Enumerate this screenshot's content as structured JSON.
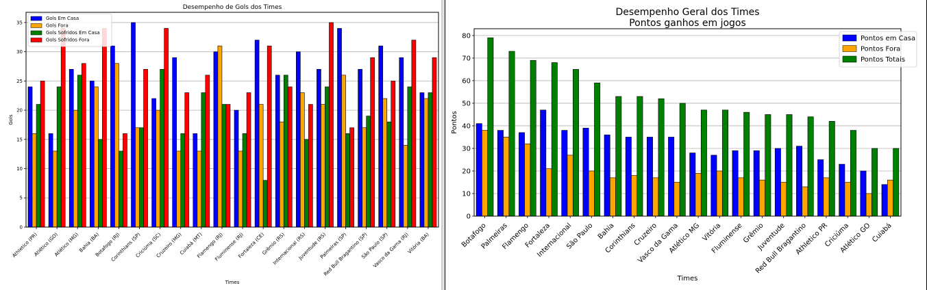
{
  "chart_data": [
    {
      "type": "bar",
      "title": "Desempenho de Gols dos Times",
      "xlabel": "Times",
      "ylabel": "Gols",
      "ylim": [
        0,
        36.75
      ],
      "yticks": [
        0,
        5,
        10,
        15,
        20,
        25,
        30,
        35
      ],
      "grid": "y",
      "legend": "top-left",
      "categories": [
        "Athletico (PR)",
        "Atlético (GO)",
        "Atlético (MG)",
        "Bahia (BA)",
        "Botafogo (RJ)",
        "Corinthians (SP)",
        "Criciúma (SC)",
        "Cruzeiro (MG)",
        "Cuiabá (MT)",
        "Flamengo (RJ)",
        "Fluminense (RJ)",
        "Fortaleza (CE)",
        "Grêmio (RS)",
        "Internacional (RS)",
        "Juventude (RS)",
        "Palmeiras (SP)",
        "Red Bull Bragantino (SP)",
        "São Paulo (SP)",
        "Vasco da Gama (RJ)",
        "Vitória (BA)"
      ],
      "series": [
        {
          "name": "Gols Em Casa",
          "color": "#0000ff",
          "values": [
            24,
            16,
            27,
            25,
            31,
            35,
            22,
            29,
            16,
            30,
            20,
            32,
            26,
            30,
            27,
            34,
            27,
            31,
            29,
            23
          ]
        },
        {
          "name": "Gols Fora",
          "color": "#ffa500",
          "values": [
            16,
            13,
            20,
            24,
            28,
            17,
            20,
            13,
            13,
            31,
            13,
            21,
            18,
            23,
            21,
            26,
            17,
            22,
            14,
            22
          ]
        },
        {
          "name": "Gols Sofridos Em Casa",
          "color": "#008000",
          "values": [
            21,
            24,
            26,
            15,
            13,
            17,
            27,
            16,
            23,
            21,
            16,
            8,
            26,
            15,
            24,
            16,
            19,
            18,
            24,
            23
          ]
        },
        {
          "name": "Gols Sofridos Fora",
          "color": "#ff0000",
          "values": [
            25,
            34,
            28,
            34,
            16,
            27,
            34,
            23,
            26,
            21,
            23,
            31,
            24,
            21,
            35,
            17,
            29,
            25,
            32,
            29
          ]
        }
      ]
    },
    {
      "type": "bar",
      "title": "Desempenho Geral dos Times",
      "subtitle": "Pontos ganhos em jogos",
      "xlabel": "Times",
      "ylabel": "Pontos",
      "ylim": [
        0,
        83
      ],
      "yticks": [
        0,
        10,
        20,
        30,
        40,
        50,
        60,
        70,
        80
      ],
      "grid": "y",
      "legend": "top-right",
      "categories": [
        "Botafogo",
        "Palmeiras",
        "Flamengo",
        "Fortaleza",
        "Internacional",
        "São Paulo",
        "Bahia",
        "Corinthians",
        "Cruzeiro",
        "Vasco da Gama",
        "Atlético MG",
        "Vitória",
        "Fluminense",
        "Grêmio",
        "Juventude",
        "Red Bull Bragantino",
        "Athletico PR",
        "Criciúma",
        "Atlético GO",
        "Cuiabá"
      ],
      "series": [
        {
          "name": "Pontos em Casa",
          "color": "#0000ff",
          "values": [
            41,
            38,
            37,
            47,
            38,
            39,
            36,
            35,
            35,
            35,
            28,
            27,
            29,
            29,
            30,
            31,
            25,
            23,
            20,
            14
          ]
        },
        {
          "name": "Pontos Fora",
          "color": "#ffa500",
          "values": [
            38,
            35,
            32,
            21,
            27,
            20,
            17,
            18,
            17,
            15,
            19,
            20,
            17,
            16,
            15,
            13,
            17,
            15,
            10,
            16
          ]
        },
        {
          "name": "Pontos Totais",
          "color": "#008000",
          "values": [
            79,
            73,
            69,
            68,
            65,
            59,
            53,
            53,
            52,
            50,
            47,
            47,
            46,
            45,
            45,
            44,
            42,
            38,
            30,
            30
          ]
        }
      ]
    }
  ]
}
